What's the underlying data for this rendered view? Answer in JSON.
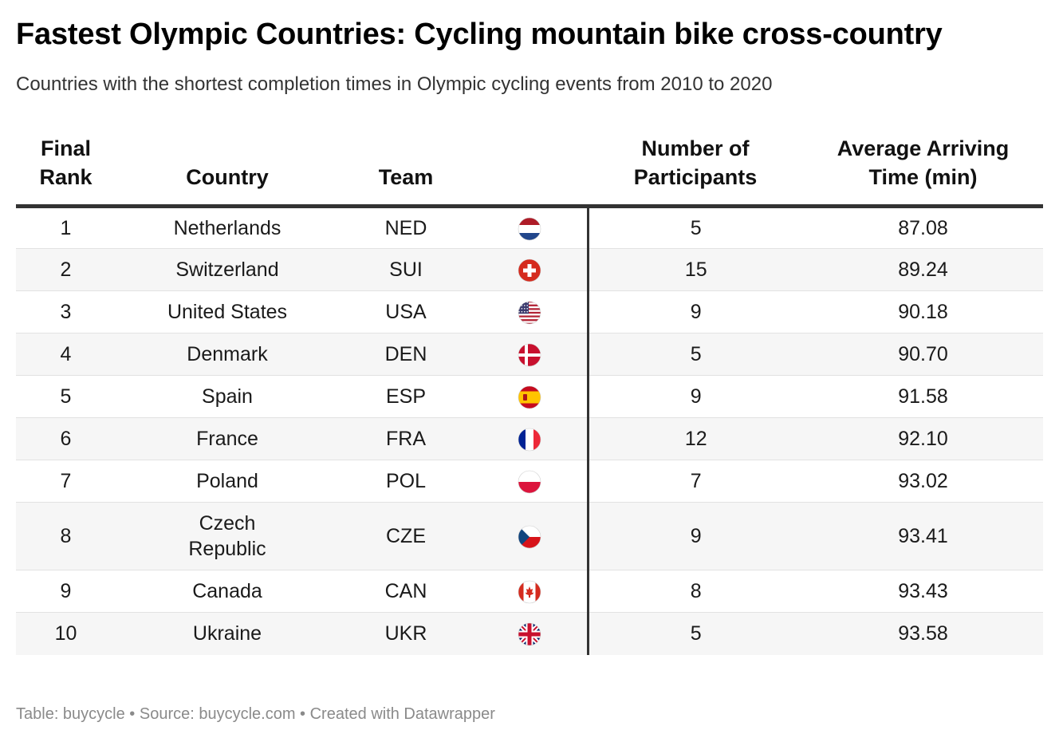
{
  "title": "Fastest Olympic Countries: Cycling mountain bike cross-country",
  "subtitle": "Countries with the shortest completion times in Olympic cycling events from 2010 to 2020",
  "footer": "Table: buycycle • Source: buycycle.com • Created with Datawrapper",
  "chart_data": {
    "type": "table",
    "columns": [
      "Final Rank",
      "Country",
      "Team",
      "",
      "Number of Participants",
      "Average Arriving Time (min)"
    ],
    "header_lines": [
      [
        "Final",
        "Rank"
      ],
      [
        "Country"
      ],
      [
        "Team"
      ],
      [
        ""
      ],
      [
        "Number of",
        "Participants"
      ],
      [
        "Average Arriving",
        "Time (min)"
      ]
    ],
    "rows": [
      {
        "rank": "1",
        "country": "Netherlands",
        "team": "NED",
        "flag": "netherlands-flag-icon",
        "participants": 5,
        "time": "87.08"
      },
      {
        "rank": "2",
        "country": "Switzerland",
        "team": "SUI",
        "flag": "switzerland-flag-icon",
        "participants": 15,
        "time": "89.24"
      },
      {
        "rank": "3",
        "country": "United States",
        "team": "USA",
        "flag": "usa-flag-icon",
        "participants": 9,
        "time": "90.18"
      },
      {
        "rank": "4",
        "country": "Denmark",
        "team": "DEN",
        "flag": "denmark-flag-icon",
        "participants": 5,
        "time": "90.70"
      },
      {
        "rank": "5",
        "country": "Spain",
        "team": "ESP",
        "flag": "spain-flag-icon",
        "participants": 9,
        "time": "91.58"
      },
      {
        "rank": "6",
        "country": "France",
        "team": "FRA",
        "flag": "france-flag-icon",
        "participants": 12,
        "time": "92.10"
      },
      {
        "rank": "7",
        "country": "Poland",
        "team": "POL",
        "flag": "poland-flag-icon",
        "participants": 7,
        "time": "93.02"
      },
      {
        "rank": "8",
        "country": "Czech Republic",
        "team": "CZE",
        "flag": "czech-flag-icon",
        "participants": 9,
        "time": "93.41"
      },
      {
        "rank": "9",
        "country": "Canada",
        "team": "CAN",
        "flag": "canada-flag-icon",
        "participants": 8,
        "time": "93.43"
      },
      {
        "rank": "10",
        "country": "Ukraine",
        "team": "UKR",
        "flag": "uk-flag-icon",
        "participants": 5,
        "time": "93.58"
      }
    ]
  },
  "colors": {
    "header_rule": "#333333",
    "zebra": "#f6f6f6",
    "footer_text": "#8a8a8a"
  }
}
